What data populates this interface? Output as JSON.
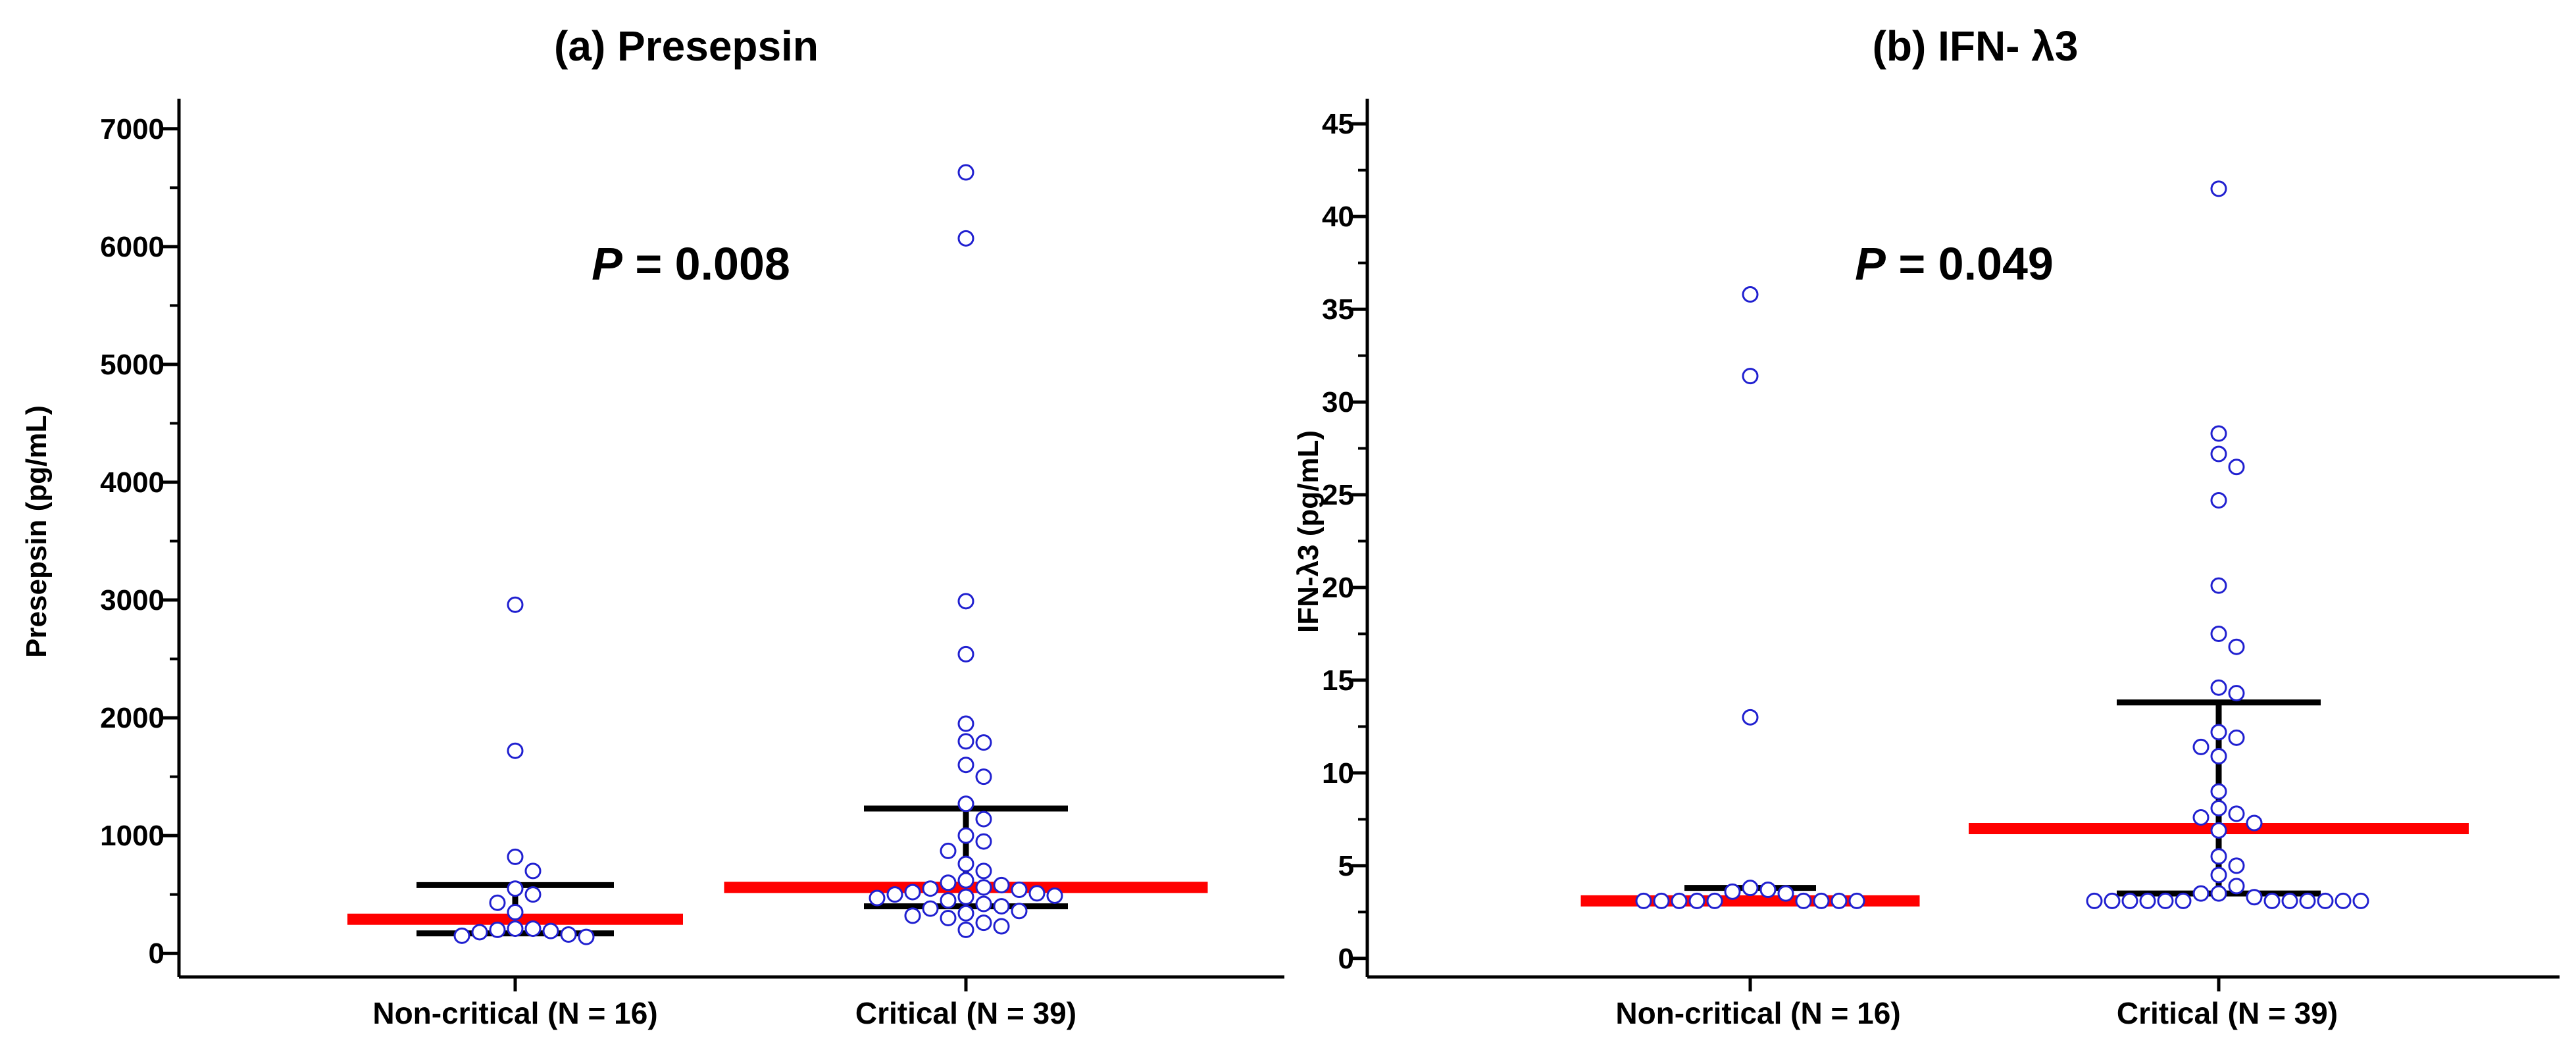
{
  "chart_data": [
    {
      "type": "scatter",
      "subtype": "dot-plot with median and interquartile range",
      "title": "(a) Presepsin",
      "ylabel": "Presepsin (pg/mL)",
      "ylim": [
        -200,
        7200
      ],
      "yticks": [
        0,
        1000,
        2000,
        3000,
        4000,
        5000,
        6000,
        7000
      ],
      "y_minor_step": 500,
      "annotation": {
        "italic": "P",
        "text": " = 0.008"
      },
      "colors": {
        "points": "#2020d0",
        "median": "#ff0000",
        "iqr": "#000000"
      },
      "groups": [
        {
          "label": "Non-critical (N = 16)",
          "median": 290,
          "q1": 170,
          "q3": 580,
          "points": [
            2960,
            1720,
            820,
            700,
            550,
            500,
            430,
            350,
            210,
            210,
            200,
            190,
            180,
            160,
            150,
            140
          ]
        },
        {
          "label": "Critical (N = 39)",
          "median": 560,
          "q1": 400,
          "q3": 1230,
          "points": [
            6630,
            6070,
            2990,
            2540,
            1950,
            1800,
            1790,
            1600,
            1500,
            1270,
            1140,
            1000,
            950,
            870,
            760,
            700,
            620,
            600,
            580,
            560,
            550,
            540,
            520,
            510,
            500,
            490,
            480,
            470,
            450,
            420,
            400,
            380,
            360,
            340,
            320,
            300,
            260,
            230,
            200
          ]
        }
      ]
    },
    {
      "type": "scatter",
      "subtype": "dot-plot with median and interquartile range",
      "title": "(b) IFN- λ3",
      "ylabel": "IFN-λ3 (pg/mL)",
      "ylim": [
        -1,
        46
      ],
      "yticks": [
        0,
        5,
        10,
        15,
        20,
        25,
        30,
        35,
        40,
        45
      ],
      "y_minor_step": 2.5,
      "annotation": {
        "italic": "P",
        "text": " = 0.049"
      },
      "colors": {
        "points": "#2020d0",
        "median": "#ff0000",
        "iqr": "#000000"
      },
      "groups": [
        {
          "label": "Non-critical (N = 16)",
          "median": 3.1,
          "q1": 3.0,
          "q3": 3.8,
          "points": [
            35.8,
            31.4,
            13.0,
            3.8,
            3.7,
            3.6,
            3.5,
            3.1,
            3.1,
            3.1,
            3.1,
            3.1,
            3.1,
            3.1,
            3.1,
            3.1
          ]
        },
        {
          "label": "Critical (N = 39)",
          "median": 7.0,
          "q1": 3.5,
          "q3": 13.8,
          "points": [
            41.5,
            28.3,
            27.2,
            26.5,
            24.7,
            20.1,
            17.5,
            16.8,
            14.6,
            14.3,
            12.2,
            11.9,
            11.4,
            10.9,
            9.0,
            8.1,
            7.8,
            7.6,
            7.3,
            6.9,
            5.5,
            5.0,
            4.5,
            3.9,
            3.5,
            3.5,
            3.3,
            3.1,
            3.1,
            3.1,
            3.1,
            3.1,
            3.1,
            3.1,
            3.1,
            3.1,
            3.1,
            3.1,
            3.1
          ]
        }
      ]
    }
  ]
}
